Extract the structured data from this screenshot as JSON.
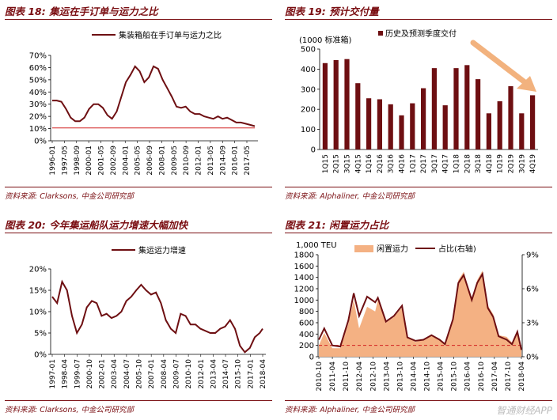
{
  "panels": [
    {
      "title": "图表 18:  集运在手订单与运力之比",
      "source": "资料来源:  Clarksons,  中金公司研究部"
    },
    {
      "title": "图表 19:  预计交付量",
      "source": "资料来源:  Alphaliner,  中金公司研究部"
    },
    {
      "title": "图表 20:  今年集运船队运力增速大幅加快",
      "source": "资料来源:  Clarksons,  中金公司研究部"
    },
    {
      "title": "图表 21:  闲置运力占比",
      "source": "资料来源:  Alphaliner,  中金公司研究部"
    }
  ],
  "watermark": "智通财经APP",
  "colors": {
    "dark_red": "#6e0f12",
    "ref_red": "#d22020",
    "area_orange": "#f4b183",
    "arrow": "#f2b27e"
  },
  "chart_data": [
    {
      "type": "line",
      "series": [
        {
          "name": "集装箱船在手订单与运力之比",
          "x": [
            1996.0,
            1996.5,
            1997.0,
            1997.5,
            1998.0,
            1998.5,
            1999.0,
            1999.5,
            2000.0,
            2000.5,
            2001.0,
            2001.5,
            2002.0,
            2002.5,
            2003.0,
            2003.5,
            2004.0,
            2004.5,
            2005.0,
            2005.5,
            2006.0,
            2006.5,
            2007.0,
            2007.5,
            2008.0,
            2008.5,
            2009.0,
            2009.5,
            2010.0,
            2010.5,
            2011.0,
            2011.5,
            2012.0,
            2012.5,
            2013.0,
            2013.5,
            2014.0,
            2014.5,
            2015.0,
            2015.5,
            2016.0,
            2016.5,
            2017.0,
            2017.5,
            2018.0
          ],
          "values": [
            33,
            33,
            32,
            26,
            19,
            16,
            16,
            19,
            26,
            30,
            30,
            27,
            21,
            18,
            24,
            36,
            48,
            54,
            61,
            57,
            48,
            52,
            61,
            59,
            50,
            43,
            36,
            28,
            27,
            28,
            24,
            22,
            22,
            20,
            19,
            18,
            20,
            18,
            19,
            17,
            15,
            15,
            14,
            13,
            12
          ]
        }
      ],
      "ref_line": {
        "value": 10.5
      },
      "xlabels": [
        "1996-01",
        "1997-05",
        "1998-09",
        "2000-01",
        "2001-05",
        "2002-09",
        "2004-01",
        "2005-05",
        "2006-09",
        "2008-01",
        "2009-05",
        "2010-09",
        "2012-01",
        "2013-05",
        "2014-09",
        "2016-01",
        "2017-05"
      ],
      "yticks": [
        "0%",
        "10%",
        "20%",
        "30%",
        "40%",
        "50%",
        "60%",
        "70%"
      ],
      "ylim": [
        0,
        70
      ],
      "legend": "top"
    },
    {
      "type": "bar",
      "unit_label": "(1000 标准箱)",
      "series": [
        {
          "name": "历史及预测季度交付",
          "values": [
            430,
            445,
            450,
            330,
            255,
            250,
            225,
            170,
            230,
            305,
            405,
            220,
            405,
            420,
            350,
            180,
            240,
            315,
            180,
            270
          ]
        }
      ],
      "categories": [
        "1Q15",
        "2Q15",
        "3Q15",
        "4Q15",
        "1Q16",
        "2Q16",
        "3Q16",
        "4Q16",
        "1Q17",
        "2Q17",
        "3Q17",
        "4Q17",
        "1Q18",
        "2Q18",
        "3Q18",
        "4Q18",
        "1Q19",
        "2Q19",
        "3Q19",
        "4Q19"
      ],
      "yticks": [
        "0",
        "100",
        "200",
        "300",
        "400",
        "500"
      ],
      "ylim": [
        0,
        500
      ],
      "legend": "top"
    },
    {
      "type": "line",
      "series": [
        {
          "name": "集运运力增速",
          "x": [
            1997.0,
            1997.5,
            1998.0,
            1998.5,
            1999.0,
            1999.5,
            2000.0,
            2000.5,
            2001.0,
            2001.5,
            2002.0,
            2002.5,
            2003.0,
            2003.5,
            2004.0,
            2004.5,
            2005.0,
            2005.5,
            2006.0,
            2006.5,
            2007.0,
            2007.5,
            2008.0,
            2008.5,
            2009.0,
            2009.5,
            2010.0,
            2010.5,
            2011.0,
            2011.5,
            2012.0,
            2012.5,
            2013.0,
            2013.5,
            2014.0,
            2014.5,
            2015.0,
            2015.5,
            2016.0,
            2016.5,
            2017.0,
            2017.5,
            2018.0,
            2018.3
          ],
          "values": [
            13.5,
            12,
            17,
            15,
            9,
            5,
            7,
            11,
            12.5,
            12,
            9,
            9.5,
            8.5,
            9,
            10,
            12.5,
            13.5,
            15,
            16.3,
            15,
            14,
            14.5,
            12,
            8,
            6,
            5,
            9.5,
            9,
            7,
            7,
            6,
            5.5,
            5,
            5,
            6,
            6.5,
            8,
            6,
            2,
            0.5,
            1.5,
            4,
            5,
            6
          ]
        }
      ],
      "xlabels": [
        "1997-01",
        "1998-04",
        "1999-07",
        "2000-10",
        "2002-01",
        "2003-04",
        "2004-07",
        "2005-10",
        "2007-01",
        "2008-04",
        "2009-07",
        "2010-10",
        "2012-01",
        "2013-04",
        "2014-07",
        "2015-10",
        "2017-01",
        "2018-04"
      ],
      "yticks": [
        "0%",
        "5%",
        "10%",
        "15%",
        "20%"
      ],
      "ylim": [
        0,
        20
      ],
      "legend": "top"
    },
    {
      "type": "area",
      "unit_label": "1,000 TEU",
      "series": [
        {
          "name": "闲置运力",
          "axis": "left",
          "x": [
            2010.8,
            2011.0,
            2011.3,
            2011.6,
            2011.9,
            2012.1,
            2012.3,
            2012.6,
            2012.9,
            2013.0,
            2013.3,
            2013.6,
            2013.9,
            2014.1,
            2014.4,
            2014.7,
            2015.0,
            2015.3,
            2015.5,
            2015.8,
            2016.0,
            2016.2,
            2016.5,
            2016.7,
            2016.9,
            2017.1,
            2017.3,
            2017.5,
            2017.8,
            2018.0,
            2018.2,
            2018.35
          ],
          "values": [
            200,
            420,
            150,
            150,
            580,
            1000,
            500,
            880,
            800,
            1000,
            600,
            700,
            870,
            350,
            260,
            300,
            380,
            300,
            200,
            700,
            1350,
            1500,
            1000,
            1350,
            1520,
            900,
            750,
            380,
            350,
            250,
            450,
            120
          ]
        },
        {
          "name": "占比(右轴)",
          "axis": "right",
          "x": [
            2010.8,
            2011.0,
            2011.3,
            2011.6,
            2011.9,
            2012.1,
            2012.3,
            2012.6,
            2012.9,
            2013.0,
            2013.3,
            2013.6,
            2013.9,
            2014.1,
            2014.4,
            2014.7,
            2015.0,
            2015.3,
            2015.5,
            2015.8,
            2016.0,
            2016.2,
            2016.5,
            2016.7,
            2016.9,
            2017.1,
            2017.3,
            2017.5,
            2017.8,
            2018.0,
            2018.2,
            2018.35
          ],
          "values": [
            1.5,
            2.5,
            1.0,
            0.9,
            3.2,
            5.6,
            3.6,
            5.3,
            4.8,
            5.2,
            3.1,
            3.6,
            4.5,
            1.7,
            1.4,
            1.5,
            1.9,
            1.5,
            1.1,
            3.3,
            6.5,
            7.2,
            5.0,
            6.5,
            7.3,
            4.3,
            3.5,
            1.8,
            1.5,
            1.1,
            2.2,
            0.6
          ]
        }
      ],
      "ref_line": {
        "value": 200
      },
      "xlabels": [
        "2010-10",
        "2011-04",
        "2011-10",
        "2012-04",
        "2012-10",
        "2013-04",
        "2013-10",
        "2014-04",
        "2014-10",
        "2015-04",
        "2015-10",
        "2016-04",
        "2016-10",
        "2017-04",
        "2017-10",
        "2018-04"
      ],
      "yticks_left": [
        "0",
        "200",
        "400",
        "600",
        "800",
        "1000",
        "1200",
        "1400",
        "1600",
        "1800"
      ],
      "yticks_right": [
        "0%",
        "3%",
        "6%",
        "9%"
      ],
      "ylim_left": [
        0,
        1800
      ],
      "ylim_right": [
        0,
        9
      ],
      "legend": "top"
    }
  ]
}
